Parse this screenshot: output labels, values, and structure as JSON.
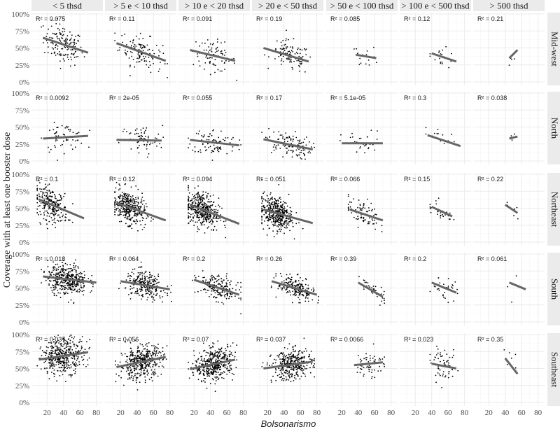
{
  "chart_data": {
    "type": "scatter",
    "title": "",
    "xlabel": "Bolsonarismo",
    "ylabel": "Coverage with at least one booster dose",
    "xlim": [
      1,
      88
    ],
    "ylim": [
      0,
      100
    ],
    "x_ticks": [
      "20",
      "40",
      "60",
      "80"
    ],
    "x_tick_values": [
      20,
      40,
      60,
      80
    ],
    "y_ticks": [
      "0%",
      "25%",
      "50%",
      "75%",
      "100%"
    ],
    "y_tick_values": [
      0,
      25,
      50,
      75,
      100
    ],
    "grid": true,
    "columns": [
      "< 5 thsd",
      "> 5 e < 10 thsd",
      "> 10 e < 20 thsd",
      "> 20 e < 50 thsd",
      "> 50 e < 100 thsd",
      "> 100 e < 500 thsd",
      "> 500 thsd"
    ],
    "rows": [
      "Mid-west",
      "North",
      "Northeast",
      "South",
      "Southeast"
    ],
    "colors": {
      "point": "#000000",
      "line": "#666666",
      "strip": "#ebebeb",
      "grid": "#ebebeb"
    },
    "panels": [
      [
        {
          "r2": "R² = 0.075",
          "fit": [
            [
              15,
              65
            ],
            [
              70,
              43
            ]
          ],
          "n": 150,
          "x_mean": 40,
          "x_sd": 12,
          "y_sd": 14
        },
        {
          "r2": "R² = 0.11",
          "fit": [
            [
              15,
              57
            ],
            [
              75,
              31
            ]
          ],
          "n": 120,
          "x_mean": 45,
          "x_sd": 13,
          "y_sd": 12
        },
        {
          "r2": "R² = 0.091",
          "fit": [
            [
              15,
              47
            ],
            [
              70,
              31
            ]
          ],
          "n": 90,
          "x_mean": 45,
          "x_sd": 13,
          "y_sd": 11
        },
        {
          "r2": "R² = 0.19",
          "fit": [
            [
              15,
              50
            ],
            [
              70,
              30
            ]
          ],
          "n": 100,
          "x_mean": 48,
          "x_sd": 12,
          "y_sd": 11
        },
        {
          "r2": "R² = 0.085",
          "fit": [
            [
              37,
              40
            ],
            [
              62,
              35
            ]
          ],
          "n": 15,
          "x_mean": 50,
          "x_sd": 8,
          "y_sd": 8
        },
        {
          "r2": "R² = 0.12",
          "fit": [
            [
              40,
              42
            ],
            [
              70,
              30
            ]
          ],
          "n": 18,
          "x_mean": 52,
          "x_sd": 9,
          "y_sd": 7
        },
        {
          "r2": "R² = 0.21",
          "fit": [
            [
              45,
              35
            ],
            [
              55,
              47
            ]
          ],
          "n": 5,
          "x_mean": 50,
          "x_sd": 3,
          "y_sd": 5
        }
      ],
      [
        {
          "r2": "R² = 0.0092",
          "fit": [
            [
              15,
              33
            ],
            [
              70,
              37
            ]
          ],
          "n": 60,
          "x_mean": 40,
          "x_sd": 13,
          "y_sd": 10
        },
        {
          "r2": "R² = 2e-05",
          "fit": [
            [
              15,
              31
            ],
            [
              70,
              30
            ]
          ],
          "n": 70,
          "x_mean": 45,
          "x_sd": 13,
          "y_sd": 11
        },
        {
          "r2": "R² = 0.055",
          "fit": [
            [
              15,
              31
            ],
            [
              75,
              23
            ]
          ],
          "n": 90,
          "x_mean": 45,
          "x_sd": 14,
          "y_sd": 10
        },
        {
          "r2": "R² = 0.17",
          "fit": [
            [
              15,
              32
            ],
            [
              75,
              17
            ]
          ],
          "n": 120,
          "x_mean": 45,
          "x_sd": 14,
          "y_sd": 9
        },
        {
          "r2": "R² = 5.1e-05",
          "fit": [
            [
              20,
              26
            ],
            [
              70,
              26
            ]
          ],
          "n": 30,
          "x_mean": 45,
          "x_sd": 13,
          "y_sd": 9
        },
        {
          "r2": "R² = 0.3",
          "fit": [
            [
              35,
              38
            ],
            [
              75,
              22
            ]
          ],
          "n": 15,
          "x_mean": 55,
          "x_sd": 11,
          "y_sd": 7
        },
        {
          "r2": "R² = 0.038",
          "fit": [
            [
              45,
              33
            ],
            [
              55,
              36
            ]
          ],
          "n": 4,
          "x_mean": 50,
          "x_sd": 4,
          "y_sd": 4
        }
      ],
      [
        {
          "r2": "R² = 0.1",
          "fit": [
            [
              10,
              63
            ],
            [
              65,
              35
            ]
          ],
          "n": 250,
          "x_mean": 25,
          "x_sd": 10,
          "y_sd": 12
        },
        {
          "r2": "R² = 0.12",
          "fit": [
            [
              15,
              58
            ],
            [
              75,
              32
            ]
          ],
          "n": 350,
          "x_mean": 30,
          "x_sd": 10,
          "y_sd": 12
        },
        {
          "r2": "R² = 0.094",
          "fit": [
            [
              15,
              55
            ],
            [
              75,
              27
            ]
          ],
          "n": 400,
          "x_mean": 30,
          "x_sd": 10,
          "y_sd": 13
        },
        {
          "r2": "R² = 0.051",
          "fit": [
            [
              15,
              48
            ],
            [
              75,
              28
            ]
          ],
          "n": 400,
          "x_mean": 30,
          "x_sd": 10,
          "y_sd": 12
        },
        {
          "r2": "R² = 0.066",
          "fit": [
            [
              30,
              48
            ],
            [
              70,
              32
            ]
          ],
          "n": 80,
          "x_mean": 45,
          "x_sd": 10,
          "y_sd": 10
        },
        {
          "r2": "R² = 0.15",
          "fit": [
            [
              40,
              52
            ],
            [
              65,
              38
            ]
          ],
          "n": 30,
          "x_mean": 50,
          "x_sd": 8,
          "y_sd": 8
        },
        {
          "r2": "R² = 0.22",
          "fit": [
            [
              40,
              55
            ],
            [
              55,
              43
            ]
          ],
          "n": 6,
          "x_mean": 47,
          "x_sd": 5,
          "y_sd": 5
        }
      ],
      [
        {
          "r2": "R² = 0.018",
          "fit": [
            [
              15,
              67
            ],
            [
              80,
              58
            ]
          ],
          "n": 400,
          "x_mean": 45,
          "x_sd": 12,
          "y_sd": 11
        },
        {
          "r2": "R² = 0.064",
          "fit": [
            [
              20,
              60
            ],
            [
              80,
              48
            ]
          ],
          "n": 250,
          "x_mean": 50,
          "x_sd": 12,
          "y_sd": 10
        },
        {
          "r2": "R² = 0.2",
          "fit": [
            [
              20,
              62
            ],
            [
              75,
              40
            ]
          ],
          "n": 200,
          "x_mean": 50,
          "x_sd": 12,
          "y_sd": 9
        },
        {
          "r2": "R² = 0.26",
          "fit": [
            [
              25,
              60
            ],
            [
              80,
              40
            ]
          ],
          "n": 200,
          "x_mean": 55,
          "x_sd": 11,
          "y_sd": 8
        },
        {
          "r2": "R² = 0.39",
          "fit": [
            [
              40,
              58
            ],
            [
              70,
              37
            ]
          ],
          "n": 40,
          "x_mean": 58,
          "x_sd": 8,
          "y_sd": 7
        },
        {
          "r2": "R² = 0.2",
          "fit": [
            [
              40,
              58
            ],
            [
              70,
              43
            ]
          ],
          "n": 30,
          "x_mean": 55,
          "x_sd": 9,
          "y_sd": 8
        },
        {
          "r2": "R² = 0.061",
          "fit": [
            [
              45,
              58
            ],
            [
              65,
              48
            ]
          ],
          "n": 4,
          "x_mean": 55,
          "x_sd": 8,
          "y_sd": 15
        }
      ],
      [
        {
          "r2": "R² = 0.037",
          "fit": [
            [
              10,
              63
            ],
            [
              70,
              74
            ]
          ],
          "n": 400,
          "x_mean": 40,
          "x_sd": 13,
          "y_sd": 13
        },
        {
          "r2": "R² = 0.056",
          "fit": [
            [
              15,
              52
            ],
            [
              75,
              67
            ]
          ],
          "n": 400,
          "x_mean": 45,
          "x_sd": 13,
          "y_sd": 12
        },
        {
          "r2": "R² = 0.07",
          "fit": [
            [
              15,
              49
            ],
            [
              70,
              63
            ]
          ],
          "n": 400,
          "x_mean": 45,
          "x_sd": 12,
          "y_sd": 12
        },
        {
          "r2": "R² = 0.037",
          "fit": [
            [
              15,
              50
            ],
            [
              75,
              60
            ]
          ],
          "n": 350,
          "x_mean": 50,
          "x_sd": 12,
          "y_sd": 11
        },
        {
          "r2": "R² = 0.0066",
          "fit": [
            [
              35,
              55
            ],
            [
              70,
              59
            ]
          ],
          "n": 60,
          "x_mean": 55,
          "x_sd": 9,
          "y_sd": 11
        },
        {
          "r2": "R² = 0.023",
          "fit": [
            [
              40,
              57
            ],
            [
              70,
              50
            ]
          ],
          "n": 60,
          "x_mean": 55,
          "x_sd": 8,
          "y_sd": 11
        },
        {
          "r2": "R² = 0.35",
          "fit": [
            [
              40,
              65
            ],
            [
              55,
              42
            ]
          ],
          "n": 8,
          "x_mean": 48,
          "x_sd": 5,
          "y_sd": 10
        }
      ]
    ]
  }
}
